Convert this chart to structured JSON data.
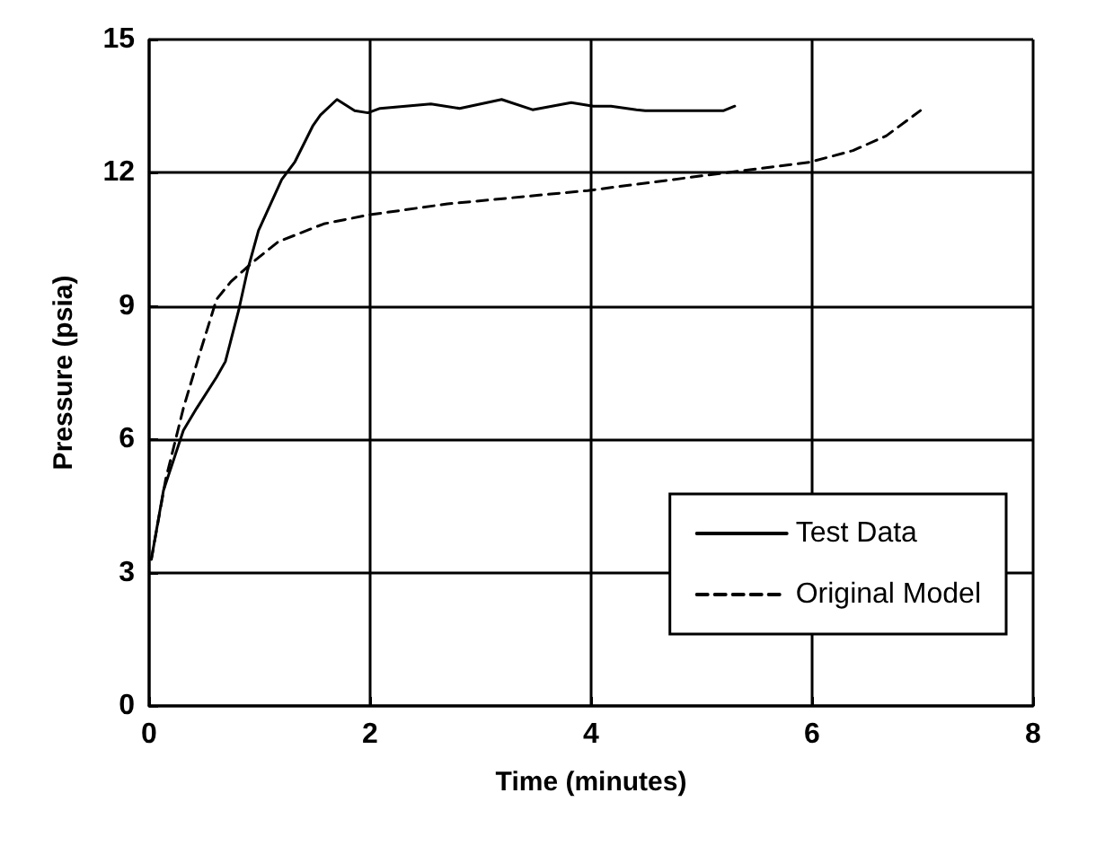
{
  "chart_data": {
    "type": "line",
    "xlabel": "Time (minutes)",
    "ylabel": "Pressure (psia)",
    "xlim": [
      0,
      8
    ],
    "xticks": [
      0,
      2,
      4,
      6,
      8
    ],
    "ylim": [
      0,
      15
    ],
    "yticks": [
      0,
      3,
      6,
      9,
      12,
      15
    ],
    "grid": true,
    "legend": "bottom right",
    "marker": "none",
    "series": [
      {
        "name": "Test Data",
        "color": "#000000",
        "line_style": "solid",
        "x": [
          0.02,
          0.13,
          0.31,
          0.43,
          0.61,
          0.69,
          0.81,
          0.89,
          0.99,
          1.2,
          1.32,
          1.48,
          1.55,
          1.7,
          1.86,
          1.98,
          2.09,
          2.55,
          2.81,
          3.19,
          3.47,
          3.82,
          4.02,
          4.18,
          4.41,
          4.49,
          5.2,
          5.3
        ],
        "values": [
          3.3,
          4.85,
          6.2,
          6.7,
          7.4,
          7.75,
          8.9,
          9.8,
          10.7,
          11.85,
          12.25,
          13.05,
          13.3,
          13.65,
          13.4,
          13.35,
          13.45,
          13.55,
          13.45,
          13.65,
          13.42,
          13.58,
          13.5,
          13.5,
          13.42,
          13.4,
          13.4,
          13.5
        ]
      },
      {
        "name": "Original Model",
        "color": "#000000",
        "line_style": "dashed",
        "x": [
          0.02,
          0.15,
          0.31,
          0.46,
          0.61,
          0.74,
          0.92,
          1.17,
          1.58,
          1.98,
          2.7,
          3.97,
          5.0,
          5.98,
          6.37,
          6.67,
          6.98
        ],
        "values": [
          3.3,
          5.1,
          6.7,
          7.95,
          9.15,
          9.55,
          9.95,
          10.45,
          10.85,
          11.05,
          11.3,
          11.6,
          11.93,
          12.24,
          12.5,
          12.83,
          13.4
        ]
      }
    ]
  }
}
